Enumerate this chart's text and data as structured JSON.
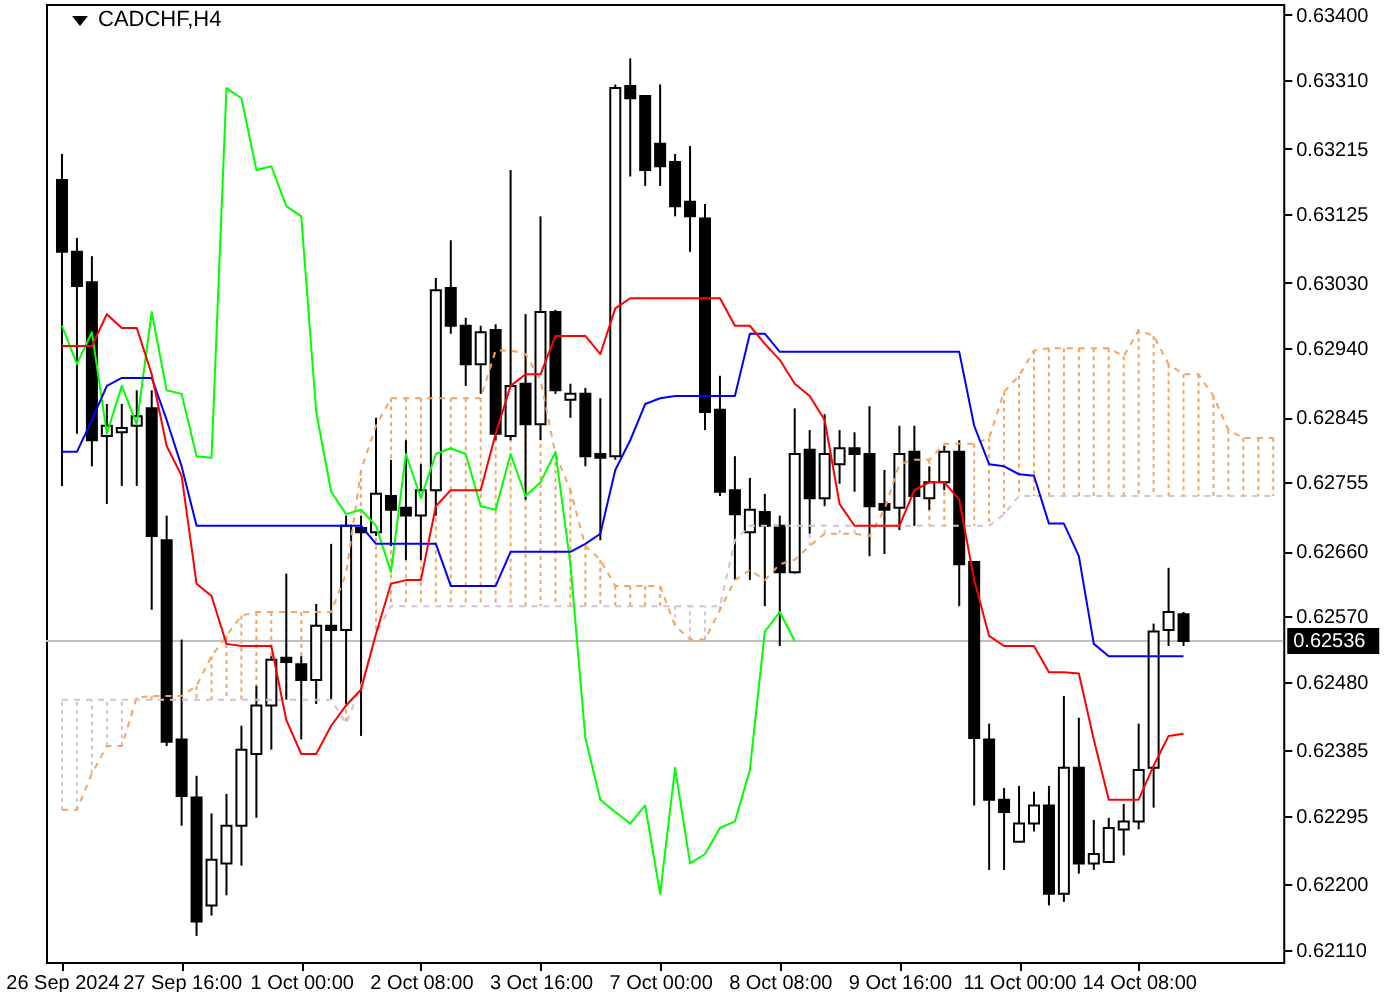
{
  "chart_data": {
    "type": "candlestick",
    "title": "CADCHF,H4",
    "categories": [
      "26 Sep 2024",
      null,
      null,
      null,
      null,
      null,
      null,
      null,
      "27 Sep 16:00",
      null,
      null,
      null,
      null,
      null,
      null,
      null,
      "1 Oct 00:00",
      null,
      null,
      null,
      null,
      null,
      null,
      null,
      "2 Oct 08:00",
      null,
      null,
      null,
      null,
      null,
      null,
      null,
      "3 Oct 16:00",
      null,
      null,
      null,
      null,
      null,
      null,
      null,
      "7 Oct 00:00",
      null,
      null,
      null,
      null,
      null,
      null,
      null,
      "8 Oct 08:00",
      null,
      null,
      null,
      null,
      null,
      null,
      null,
      "9 Oct 16:00",
      null,
      null,
      null,
      null,
      null,
      null,
      null,
      "11 Oct 00:00",
      null,
      null,
      null,
      null,
      null,
      null,
      null,
      "14 Oct 08:00",
      null,
      null,
      null,
      null,
      null,
      null,
      null,
      null,
      null
    ],
    "ohlc": [
      [
        0.63172,
        0.63208,
        0.6275,
        0.63073
      ],
      [
        0.63073,
        0.63092,
        0.62822,
        0.63026
      ],
      [
        0.63031,
        0.63067,
        0.62777,
        0.62813
      ],
      [
        0.62819,
        0.62863,
        0.62725,
        0.62833
      ],
      [
        0.62824,
        0.62863,
        0.6275,
        0.6283
      ],
      [
        0.62833,
        0.62882,
        0.6275,
        0.62846
      ],
      [
        0.62857,
        0.62882,
        0.62579,
        0.62681
      ],
      [
        0.62675,
        0.62709,
        0.62391,
        0.62397
      ],
      [
        0.624,
        0.62538,
        0.62281,
        0.62322
      ],
      [
        0.6232,
        0.6235,
        0.62129,
        0.62149
      ],
      [
        0.62171,
        0.62298,
        0.62157,
        0.62234
      ],
      [
        0.62229,
        0.62325,
        0.62185,
        0.62281
      ],
      [
        0.62281,
        0.62419,
        0.62226,
        0.62386
      ],
      [
        0.6238,
        0.62474,
        0.62292,
        0.62447
      ],
      [
        0.62447,
        0.62515,
        0.62386,
        0.6251
      ],
      [
        0.62513,
        0.62629,
        0.62455,
        0.62507
      ],
      [
        0.62504,
        0.62515,
        0.624,
        0.62482
      ],
      [
        0.62482,
        0.62587,
        0.62449,
        0.62557
      ],
      [
        0.62557,
        0.6267,
        0.62455,
        0.62551
      ],
      [
        0.62551,
        0.62709,
        0.62449,
        0.62695
      ],
      [
        0.62692,
        0.62709,
        0.62405,
        0.62686
      ],
      [
        0.62686,
        0.62844,
        0.62681,
        0.62739
      ],
      [
        0.62736,
        0.62786,
        0.62667,
        0.62717
      ],
      [
        0.6272,
        0.62813,
        0.62648,
        0.62709
      ],
      [
        0.62709,
        0.6278,
        0.62648,
        0.62744
      ],
      [
        0.62744,
        0.63037,
        0.62709,
        0.6302
      ],
      [
        0.63023,
        0.63089,
        0.6296,
        0.62971
      ],
      [
        0.62971,
        0.62982,
        0.62888,
        0.62918
      ],
      [
        0.62918,
        0.62971,
        0.62877,
        0.62962
      ],
      [
        0.62965,
        0.62973,
        0.62813,
        0.62822
      ],
      [
        0.62819,
        0.63186,
        0.62813,
        0.62888
      ],
      [
        0.62891,
        0.62987,
        0.62731,
        0.62835
      ],
      [
        0.62835,
        0.63122,
        0.62813,
        0.6299
      ],
      [
        0.6299,
        0.62993,
        0.62877,
        0.62882
      ],
      [
        0.62869,
        0.62891,
        0.62844,
        0.62877
      ],
      [
        0.62877,
        0.62885,
        0.62777,
        0.62791
      ],
      [
        0.62794,
        0.62871,
        0.62675,
        0.62789
      ],
      [
        0.62791,
        0.63304,
        0.62786,
        0.63299
      ],
      [
        0.63302,
        0.6334,
        0.63177,
        0.63285
      ],
      [
        0.63288,
        0.63288,
        0.63164,
        0.63186
      ],
      [
        0.63222,
        0.63304,
        0.63164,
        0.63191
      ],
      [
        0.63197,
        0.63208,
        0.63122,
        0.63136
      ],
      [
        0.63142,
        0.63219,
        0.63073,
        0.63122
      ],
      [
        0.63119,
        0.63139,
        0.62827,
        0.62852
      ],
      [
        0.62855,
        0.62902,
        0.62736,
        0.62742
      ],
      [
        0.62744,
        0.62791,
        0.6262,
        0.62711
      ],
      [
        0.62686,
        0.62761,
        0.6262,
        0.62717
      ],
      [
        0.62714,
        0.62739,
        0.62584,
        0.62695
      ],
      [
        0.62695,
        0.62709,
        0.62529,
        0.62631
      ],
      [
        0.62631,
        0.62857,
        0.62629,
        0.62794
      ],
      [
        0.628,
        0.62827,
        0.62684,
        0.62733
      ],
      [
        0.62733,
        0.62849,
        0.62722,
        0.62794
      ],
      [
        0.6278,
        0.62827,
        0.62753,
        0.62802
      ],
      [
        0.62802,
        0.62824,
        0.62742,
        0.62794
      ],
      [
        0.62794,
        0.6286,
        0.62653,
        0.62722
      ],
      [
        0.62725,
        0.62772,
        0.62656,
        0.62717
      ],
      [
        0.6272,
        0.62833,
        0.62689,
        0.62794
      ],
      [
        0.62797,
        0.62833,
        0.62695,
        0.62736
      ],
      [
        0.62733,
        0.62777,
        0.62717,
        0.62755
      ],
      [
        0.62755,
        0.62805,
        0.62744,
        0.62797
      ],
      [
        0.62797,
        0.62813,
        0.62584,
        0.62642
      ],
      [
        0.62645,
        0.62645,
        0.62309,
        0.62402
      ],
      [
        0.624,
        0.62422,
        0.6222,
        0.62317
      ],
      [
        0.62317,
        0.62333,
        0.6222,
        0.623
      ],
      [
        0.62259,
        0.62336,
        0.62259,
        0.62284
      ],
      [
        0.62284,
        0.62328,
        0.62273,
        0.62309
      ],
      [
        0.62309,
        0.62336,
        0.62171,
        0.62187
      ],
      [
        0.62187,
        0.6246,
        0.62176,
        0.62361
      ],
      [
        0.62361,
        0.6243,
        0.62215,
        0.62229
      ],
      [
        0.62229,
        0.62289,
        0.6222,
        0.62242
      ],
      [
        0.62231,
        0.62292,
        0.62231,
        0.62278
      ],
      [
        0.62276,
        0.62311,
        0.6224,
        0.62287
      ],
      [
        0.62287,
        0.62422,
        0.62276,
        0.62358
      ],
      [
        0.62361,
        0.6256,
        0.62306,
        0.62549
      ],
      [
        0.62551,
        0.62637,
        0.62529,
        0.62576
      ],
      [
        0.62573,
        0.62576,
        0.62529,
        0.62536
      ],
      null,
      null,
      null,
      null,
      null,
      null
    ],
    "series": [
      {
        "type": "line",
        "color": "#f4a460",
        "line_style": "dashed",
        "values": [
          0.62303,
          0.62303,
          0.62353,
          0.62391,
          0.62391,
          0.62458,
          0.6246,
          0.6246,
          0.6246,
          0.62474,
          0.62515,
          0.62543,
          0.62571,
          0.62576,
          0.62576,
          0.62576,
          0.62576,
          0.62576,
          0.62576,
          0.62629,
          0.62772,
          0.62833,
          0.62871,
          0.62871,
          0.62871,
          0.62871,
          0.62871,
          0.62871,
          0.62871,
          0.62937,
          0.62937,
          0.62932,
          0.62896,
          0.62794,
          0.62744,
          0.62667,
          0.62648,
          0.62612,
          0.62612,
          0.62612,
          0.62612,
          0.62557,
          0.62538,
          0.62538,
          0.62579,
          0.6262,
          0.62634,
          0.6262,
          0.62642,
          0.62648,
          0.62667,
          0.62684,
          0.62684,
          0.62684,
          0.62681,
          0.62717,
          0.6278,
          0.62786,
          0.62786,
          0.62808,
          0.62808,
          0.62808,
          0.62816,
          0.6288,
          0.62902,
          0.62937,
          0.6294,
          0.6294,
          0.6294,
          0.6294,
          0.6294,
          0.62929,
          0.62965,
          0.62957,
          0.62918,
          0.62904,
          0.62904,
          0.62874,
          0.62827,
          0.62816,
          0.62816,
          0.62816
        ]
      },
      {
        "type": "line",
        "color": "#d8bfd8",
        "line_style": "dashed",
        "values": [
          0.62455,
          0.62455,
          0.62455,
          0.62455,
          0.62455,
          0.62455,
          0.62455,
          0.62455,
          0.62455,
          0.62455,
          0.62455,
          0.62455,
          0.62455,
          0.62455,
          0.62455,
          0.62455,
          0.62455,
          0.62455,
          0.62455,
          0.62422,
          0.62474,
          0.62546,
          0.62584,
          0.62584,
          0.62584,
          0.62584,
          0.62584,
          0.62584,
          0.62584,
          0.62584,
          0.62584,
          0.62584,
          0.62584,
          0.62584,
          0.62584,
          0.62584,
          0.62584,
          0.62584,
          0.62584,
          0.62584,
          0.62584,
          0.62584,
          0.62584,
          0.62584,
          0.62584,
          0.62675,
          0.62695,
          0.62695,
          0.62695,
          0.62695,
          0.62695,
          0.62695,
          0.62695,
          0.62695,
          0.62695,
          0.62695,
          0.62695,
          0.62695,
          0.62695,
          0.62695,
          0.62695,
          0.62695,
          0.62695,
          0.62711,
          0.62736,
          0.62736,
          0.62736,
          0.62736,
          0.62736,
          0.62736,
          0.62736,
          0.62736,
          0.62736,
          0.62736,
          0.62736,
          0.62736,
          0.62736,
          0.62736,
          0.62736,
          0.62736,
          0.62736,
          0.62736
        ]
      },
      {
        "type": "line",
        "color": "#00ff00",
        "line_style": "solid",
        "values": [
          0.62971,
          0.62918,
          0.62962,
          0.62822,
          0.62888,
          0.62835,
          0.6299,
          0.62882,
          0.62877,
          0.62791,
          0.62789,
          0.63299,
          0.63285,
          0.63186,
          0.63191,
          0.63136,
          0.63122,
          0.62852,
          0.62742,
          0.62711,
          0.62717,
          0.62695,
          0.62631,
          0.62794,
          0.62733,
          0.62794,
          0.62802,
          0.62794,
          0.62722,
          0.62717,
          0.62794,
          0.62736,
          0.62755,
          0.62797,
          0.62642,
          0.62402,
          0.62317,
          0.623,
          0.62284,
          0.62309,
          0.62187,
          0.62361,
          0.62229,
          0.62242,
          0.62278,
          0.62287,
          0.62358,
          0.62549,
          0.62576,
          0.62536,
          null,
          null,
          null,
          null,
          null,
          null,
          null,
          null,
          null,
          null,
          null,
          null,
          null,
          null,
          null,
          null,
          null,
          null,
          null,
          null,
          null,
          null,
          null,
          null,
          null,
          null,
          null,
          null,
          null,
          null,
          null,
          null
        ]
      },
      {
        "type": "line",
        "color": "#0000ff",
        "line_style": "solid",
        "values": [
          0.62797,
          0.62797,
          0.62841,
          0.62888,
          0.62899,
          0.62899,
          0.62899,
          0.62841,
          0.62777,
          0.62695,
          0.62695,
          0.62695,
          0.62695,
          0.62695,
          0.62695,
          0.62695,
          0.62695,
          0.62695,
          0.62695,
          0.62695,
          0.62695,
          0.6267,
          0.6267,
          0.6267,
          0.6267,
          0.6267,
          0.62612,
          0.62612,
          0.62612,
          0.62612,
          0.62659,
          0.62659,
          0.62659,
          0.62659,
          0.62659,
          0.6267,
          0.62684,
          0.62772,
          0.62813,
          0.62863,
          0.62871,
          0.62874,
          0.62874,
          0.62874,
          0.62874,
          0.62874,
          0.6296,
          0.6296,
          0.62935,
          0.62935,
          0.62935,
          0.62935,
          0.62935,
          0.62935,
          0.62935,
          0.62935,
          0.62935,
          0.62935,
          0.62935,
          0.62935,
          0.62935,
          0.62833,
          0.6278,
          0.62777,
          0.62766,
          0.62764,
          0.62698,
          0.62698,
          0.62653,
          0.62532,
          0.62515,
          0.62515,
          0.62515,
          0.62515,
          0.62515,
          0.62515,
          null,
          null,
          null,
          null,
          null,
          null
        ]
      },
      {
        "type": "line",
        "color": "#ff0000",
        "line_style": "solid",
        "values": [
          0.62943,
          0.62943,
          0.62943,
          0.62987,
          0.62968,
          0.62968,
          0.62904,
          0.62805,
          0.62764,
          0.62615,
          0.62598,
          0.62532,
          0.62529,
          0.62529,
          0.62529,
          0.62427,
          0.6238,
          0.6238,
          0.62419,
          0.62447,
          0.62469,
          0.62546,
          0.62615,
          0.6262,
          0.6262,
          0.62722,
          0.62744,
          0.62744,
          0.62744,
          0.62822,
          0.62888,
          0.62904,
          0.62904,
          0.62957,
          0.62957,
          0.62957,
          0.62932,
          0.62995,
          0.63009,
          0.63009,
          0.63009,
          0.63009,
          0.63009,
          0.63009,
          0.63009,
          0.62971,
          0.62971,
          0.62946,
          0.62924,
          0.62891,
          0.62874,
          0.62841,
          0.62725,
          0.62695,
          0.62695,
          0.62695,
          0.62695,
          0.62744,
          0.62755,
          0.62755,
          0.62731,
          0.6262,
          0.62543,
          0.62529,
          0.62529,
          0.62529,
          0.62493,
          0.62493,
          0.62491,
          0.624,
          0.62317,
          0.62317,
          0.62317,
          0.62364,
          0.62405,
          0.62408,
          null,
          null,
          null,
          null,
          null,
          null
        ]
      }
    ],
    "ylim": [
      0.62093,
      0.63415
    ],
    "yticks": [
      {
        "value": 0.634,
        "label": "0.63400"
      },
      {
        "value": 0.6331,
        "label": "0.63310"
      },
      {
        "value": 0.63215,
        "label": "0.63215"
      },
      {
        "value": 0.63125,
        "label": "0.63125"
      },
      {
        "value": 0.6303,
        "label": "0.63030"
      },
      {
        "value": 0.6294,
        "label": "0.62940"
      },
      {
        "value": 0.62845,
        "label": "0.62845"
      },
      {
        "value": 0.62755,
        "label": "0.62755"
      },
      {
        "value": 0.6266,
        "label": "0.62660"
      },
      {
        "value": 0.6257,
        "label": "0.62570"
      },
      {
        "value": 0.6248,
        "label": "0.62480"
      },
      {
        "value": 0.62385,
        "label": "0.62385"
      },
      {
        "value": 0.62295,
        "label": "0.62295"
      },
      {
        "value": 0.622,
        "label": "0.62200"
      },
      {
        "value": 0.6211,
        "label": "0.62110"
      }
    ],
    "ref_lines": [
      {
        "axis": "y",
        "value": 0.62536,
        "label": "0.62536",
        "color": "#c0c0c0"
      }
    ]
  }
}
